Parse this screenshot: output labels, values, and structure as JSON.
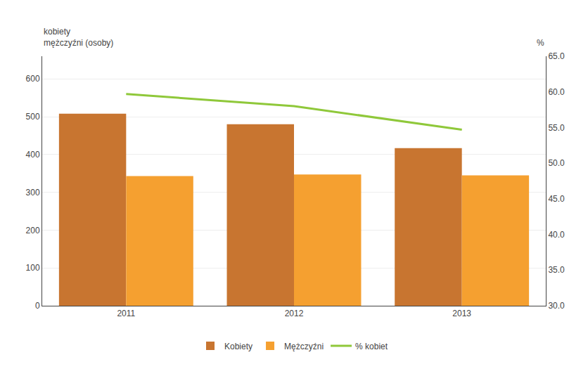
{
  "chart_data": {
    "type": "bar",
    "categories": [
      2011,
      2012,
      2013
    ],
    "series": [
      {
        "name": "Kobiety",
        "type": "bar",
        "color": "#C87530",
        "values": [
          508,
          480,
          417
        ]
      },
      {
        "name": "Mężczyźni",
        "type": "bar",
        "color": "#F5A030",
        "values": [
          343,
          347,
          345
        ]
      },
      {
        "name": "% kobiet",
        "type": "line",
        "axis": "y2",
        "color": "#8FC83A",
        "values": [
          59.7,
          58.0,
          54.7
        ]
      }
    ],
    "ylabel": [
      "kobiety",
      "mężczyźni (osoby)"
    ],
    "y2label": "%",
    "ylim": [
      0,
      660
    ],
    "yticks": [
      0,
      100,
      200,
      300,
      400,
      500,
      600
    ],
    "y2lim": [
      30.0,
      65.0
    ],
    "y2ticks": [
      {
        "value": 30.0,
        "label": "30.0"
      },
      {
        "value": 35.0,
        "label": "35.0"
      },
      {
        "value": 40.0,
        "label": "40.0"
      },
      {
        "value": 45.0,
        "label": "45.0"
      },
      {
        "value": 50.0,
        "label": "50.0"
      },
      {
        "value": 55.0,
        "label": "55.0"
      },
      {
        "value": 60.0,
        "label": "60.0"
      },
      {
        "value": 65.0,
        "label": "65.0"
      }
    ],
    "grid": true,
    "legend": "bottom"
  }
}
